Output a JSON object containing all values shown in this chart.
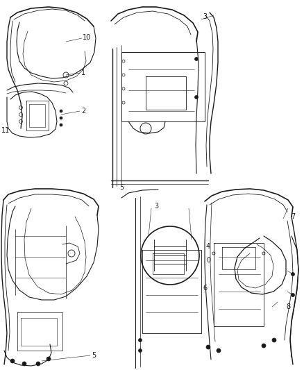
{
  "background_color": "#ffffff",
  "line_color": "#1a1a1a",
  "label_color": "#1a1a1a",
  "label_fontsize": 7,
  "fig_width": 4.38,
  "fig_height": 5.33,
  "dpi": 100
}
